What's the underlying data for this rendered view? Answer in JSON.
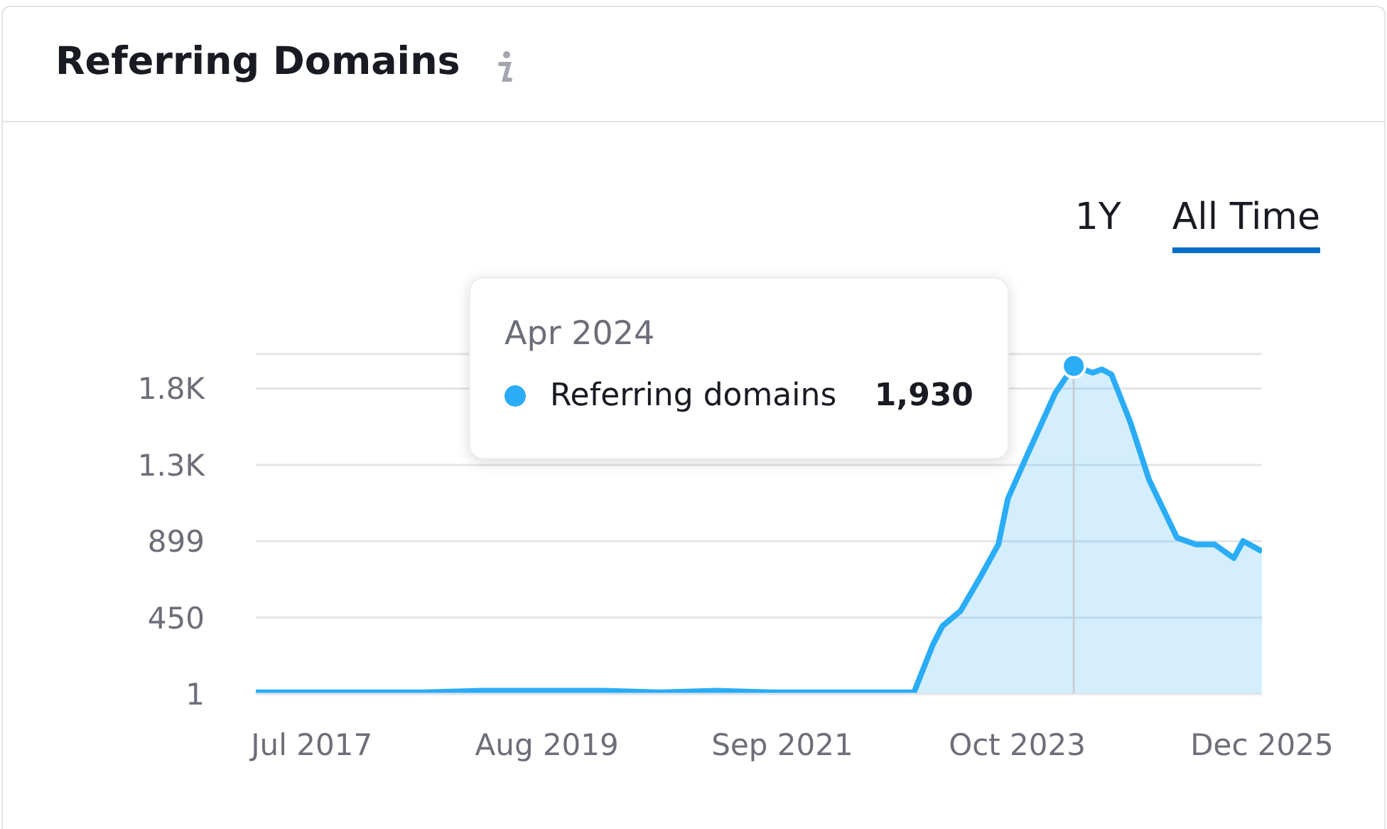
{
  "chart_data": {
    "type": "area",
    "title": "Referring Domains",
    "annotations": [
      "1Y",
      "All Time",
      "Apr 2024",
      "1,930"
    ],
    "series": [
      {
        "name": "Referring domains",
        "color": "#2aacf7",
        "x": [
          "2017-01",
          "2017-07",
          "2018-01",
          "2018-07",
          "2019-01",
          "2019-08",
          "2020-02",
          "2020-08",
          "2021-02",
          "2021-08",
          "2022-02",
          "2022-08",
          "2022-11",
          "2023-01",
          "2023-02",
          "2023-04",
          "2023-06",
          "2023-08",
          "2023-09",
          "2023-11",
          "2024-02",
          "2024-04",
          "2024-06",
          "2024-07",
          "2024-08",
          "2024-10",
          "2024-12",
          "2025-03",
          "2025-05",
          "2025-07",
          "2025-09",
          "2025-10",
          "2025-12"
        ],
        "values": [
          10,
          10,
          10,
          10,
          20,
          20,
          20,
          10,
          20,
          10,
          10,
          10,
          10,
          290,
          400,
          490,
          680,
          880,
          1150,
          1400,
          1770,
          1930,
          1890,
          1910,
          1880,
          1600,
          1260,
          920,
          880,
          880,
          800,
          900,
          840
        ]
      }
    ],
    "xlim": [
      "2017-01",
      "2025-12"
    ],
    "xticks": [
      {
        "value": "2017-07",
        "label": "Jul 2017"
      },
      {
        "value": "2019-08",
        "label": "Aug 2019"
      },
      {
        "value": "2021-09",
        "label": "Sep 2021"
      },
      {
        "value": "2023-10",
        "label": "Oct 2023"
      },
      {
        "value": "2025-12",
        "label": "Dec 2025"
      }
    ],
    "ylim": [
      1,
      2000
    ],
    "yticks": [
      1,
      450,
      899,
      {
        "value": 1348,
        "label": "1.3K"
      },
      {
        "value": 1797,
        "label": "1.8K"
      }
    ],
    "grid": "y",
    "ref_lines": [
      {
        "axis": "x",
        "value": "2024-04",
        "color": "#c9ccd3"
      }
    ]
  }
}
